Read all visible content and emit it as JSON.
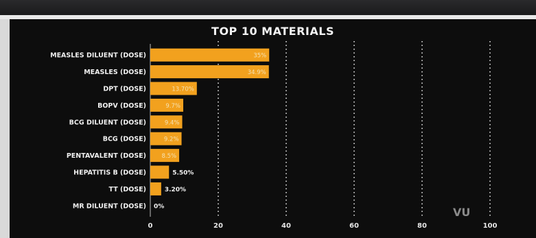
{
  "watermark": "VU",
  "chart_data": {
    "type": "bar",
    "orientation": "horizontal",
    "title": "TOP 10 MATERIALS",
    "xlabel": "",
    "ylabel": "",
    "xlim": [
      0,
      100
    ],
    "xticks": [
      0,
      20,
      40,
      60,
      80,
      100
    ],
    "grid": "vertical dotted",
    "bar_color": "#f2a11e",
    "categories": [
      "MEASLES DILUENT (DOSE)",
      "MEASLES (DOSE)",
      "DPT (DOSE)",
      "BOPV (DOSE)",
      "BCG DILUENT (DOSE)",
      "BCG (DOSE)",
      "PENTAVALENT (DOSE)",
      "HEPATITIS B (DOSE)",
      "TT (DOSE)",
      "MR DILUENT (DOSE)"
    ],
    "values": [
      35,
      34.9,
      13.7,
      9.7,
      9.4,
      9.2,
      8.5,
      5.5,
      3.2,
      0
    ],
    "labels": [
      "35%",
      "34.9%",
      "13.70%",
      "9.7%",
      "9.4%",
      "9.2%",
      "8.5%",
      "5.50%",
      "3.20%",
      "0%"
    ]
  }
}
